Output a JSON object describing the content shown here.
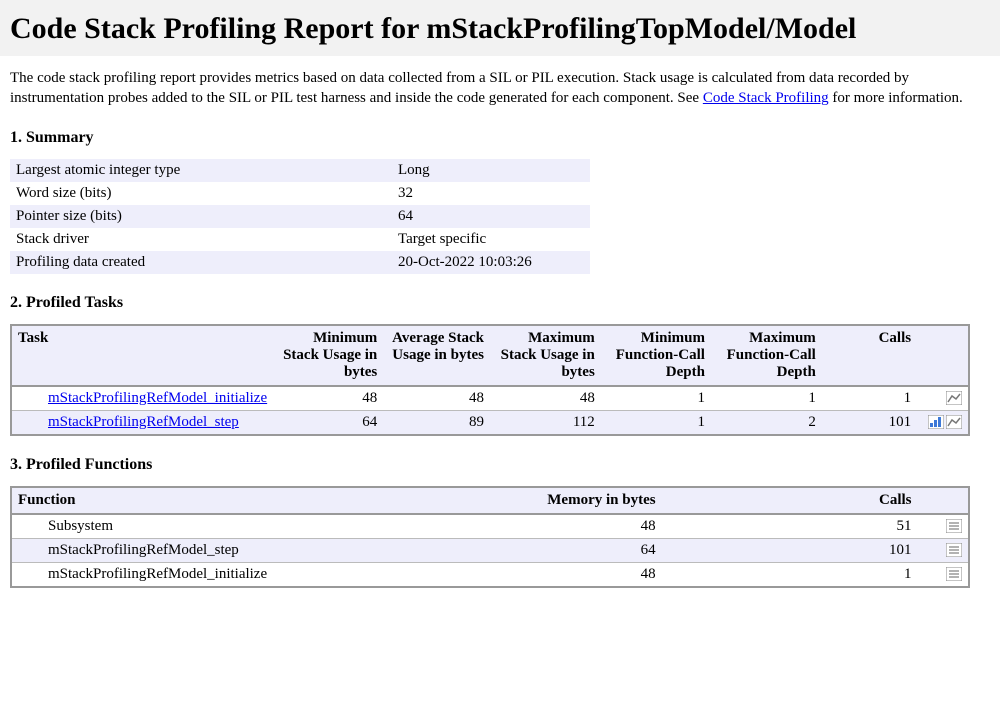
{
  "colors": {
    "header_bg": "#f2f2f2",
    "alt_row": "#eeeefb",
    "border": "#999999",
    "link": "#0000ee",
    "text": "#000000",
    "icon_blue": "#3c78d8",
    "icon_gray": "#777777"
  },
  "title": "Code Stack Profiling Report for mStackProfilingTopModel/Model",
  "intro": {
    "text_before_link": "The code stack profiling report provides metrics based on data collected from a SIL or PIL execution. Stack usage is calculated from data recorded by instrumentation probes added to the SIL or PIL test harness and inside the code generated for each component. See ",
    "link_text": "Code Stack Profiling",
    "text_after_link": " for more information."
  },
  "sections": {
    "summary_title": "1. Summary",
    "tasks_title": "2. Profiled Tasks",
    "functions_title": "3. Profiled Functions"
  },
  "summary": {
    "rows": [
      {
        "label": "Largest atomic integer type",
        "value": "Long"
      },
      {
        "label": "Word size (bits)",
        "value": "32"
      },
      {
        "label": "Pointer size (bits)",
        "value": "64"
      },
      {
        "label": "Stack driver",
        "value": "Target specific"
      },
      {
        "label": "Profiling data created",
        "value": "20-Oct-2022 10:03:26"
      }
    ]
  },
  "tasks_table": {
    "columns": {
      "task": "Task",
      "min_stack": "Minimum Stack Usage in bytes",
      "avg_stack": "Average Stack Usage in bytes",
      "max_stack": "Maximum Stack Usage in bytes",
      "min_depth": "Minimum Function-Call Depth",
      "max_depth": "Maximum Function-Call Depth",
      "calls": "Calls"
    },
    "col_widths": {
      "task": 236,
      "num": 112,
      "icons": 40
    },
    "rows": [
      {
        "name": "mStackProfilingRefModel_initialize",
        "min_stack": "48",
        "avg_stack": "48",
        "max_stack": "48",
        "min_depth": "1",
        "max_depth": "1",
        "calls": "1",
        "show_bar": false,
        "show_line": true
      },
      {
        "name": "mStackProfilingRefModel_step",
        "min_stack": "64",
        "avg_stack": "89",
        "max_stack": "112",
        "min_depth": "1",
        "max_depth": "2",
        "calls": "101",
        "show_bar": true,
        "show_line": true
      }
    ]
  },
  "functions_table": {
    "columns": {
      "function": "Function",
      "memory": "Memory in bytes",
      "calls": "Calls"
    },
    "col_widths": {
      "function": 400,
      "memory": 250,
      "calls": 260,
      "icons": 40
    },
    "rows": [
      {
        "name": "Subsystem",
        "memory": "48",
        "calls": "51"
      },
      {
        "name": "mStackProfilingRefModel_step",
        "memory": "64",
        "calls": "101"
      },
      {
        "name": "mStackProfilingRefModel_initialize",
        "memory": "48",
        "calls": "1"
      }
    ]
  }
}
